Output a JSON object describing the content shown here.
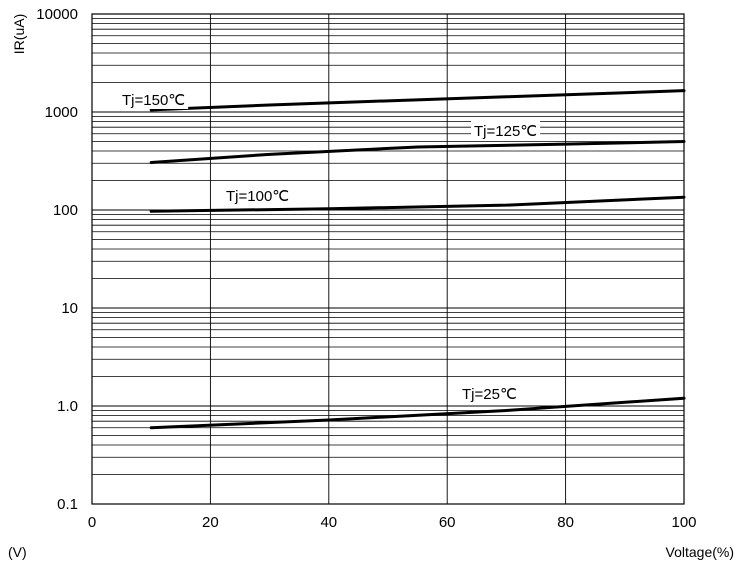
{
  "chart_data": {
    "type": "line",
    "title": "",
    "xlabel": "Voltage(%)",
    "ylabel": "IR(uA)",
    "corner_label": "(V)",
    "xlim": [
      0,
      100
    ],
    "ylim": [
      0.1,
      10000
    ],
    "yscale": "log",
    "grid": true,
    "x_ticks": [
      0,
      20,
      40,
      60,
      80,
      100
    ],
    "x_tick_labels": [
      "0",
      "20",
      "40",
      "60",
      "80",
      "100"
    ],
    "y_ticks": [
      0.1,
      1,
      10,
      100,
      1000,
      10000
    ],
    "y_tick_labels": [
      "0.1",
      "1.0",
      "10",
      "100",
      "1000",
      "10000"
    ],
    "series": [
      {
        "name": "Tj=150℃",
        "x": [
          10,
          30,
          50,
          70,
          100
        ],
        "y": [
          1050,
          1180,
          1300,
          1430,
          1650
        ]
      },
      {
        "name": "Tj=125℃",
        "x": [
          10,
          30,
          55,
          80,
          100
        ],
        "y": [
          305,
          370,
          440,
          470,
          500
        ]
      },
      {
        "name": "Tj=100℃",
        "x": [
          10,
          40,
          70,
          100
        ],
        "y": [
          97,
          103,
          112,
          135
        ]
      },
      {
        "name": "Tj=25℃",
        "x": [
          10,
          40,
          70,
          100
        ],
        "y": [
          0.6,
          0.72,
          0.9,
          1.2
        ]
      }
    ],
    "colors": {
      "line": "#000000",
      "grid": "#000000"
    }
  }
}
